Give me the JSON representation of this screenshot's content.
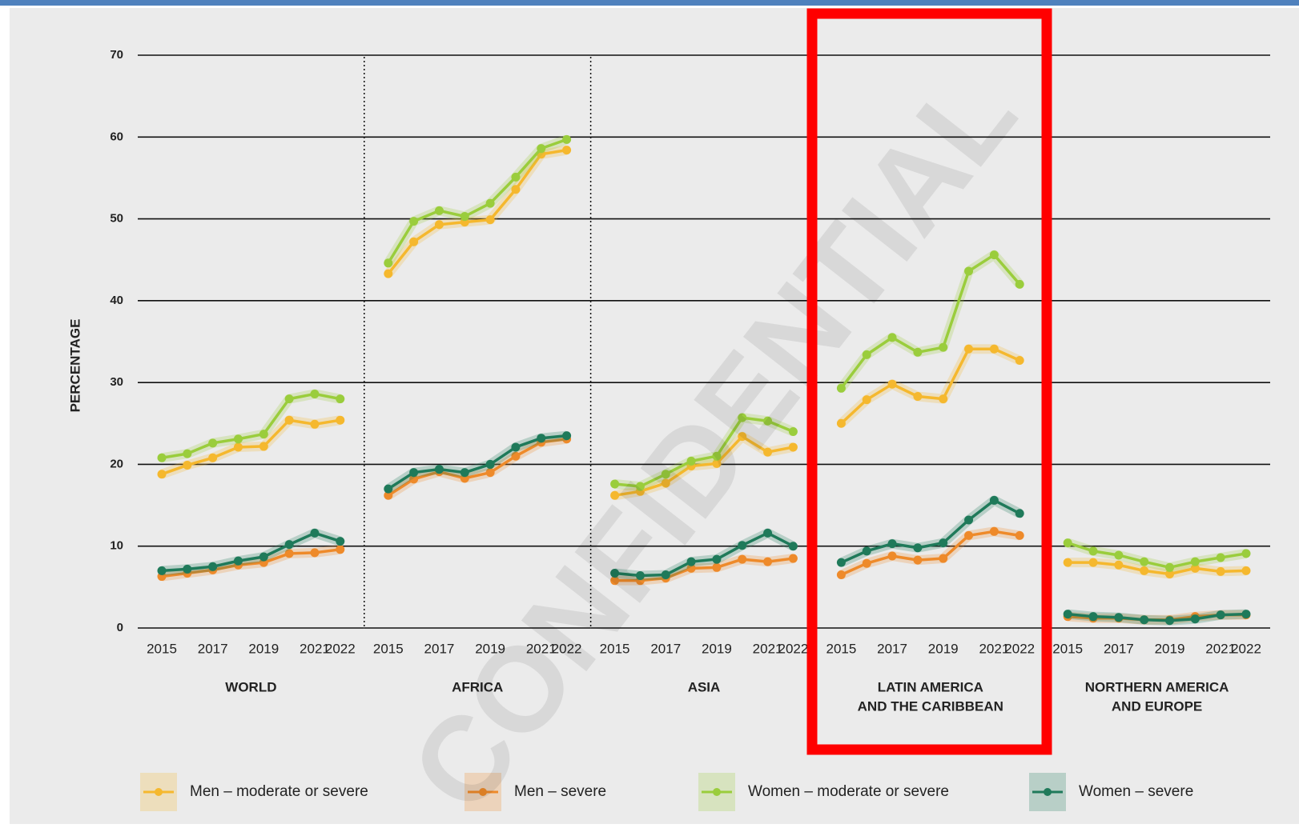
{
  "watermark": "CONFIDENTIAL",
  "chart_data": [
    {
      "type": "line",
      "title": [
        "WORLD"
      ],
      "ylabel": "PERCENTAGE",
      "x": [
        2015,
        2016,
        2017,
        2018,
        2019,
        2020,
        2021,
        2022
      ],
      "xlim": [
        2015,
        2022
      ],
      "xticks": [
        2015,
        2017,
        2019,
        2021,
        2022
      ],
      "ylim": [
        0,
        70
      ],
      "yticks": [
        0,
        10,
        20,
        30,
        40,
        50,
        60,
        70
      ],
      "grid": true,
      "series": [
        {
          "name": "Men – moderate or severe",
          "color": "#f5b82e",
          "values": [
            18.8,
            19.9,
            20.8,
            22.1,
            22.2,
            25.4,
            24.9,
            25.4
          ]
        },
        {
          "name": "Men – severe",
          "color": "#ee8a2a",
          "values": [
            6.3,
            6.7,
            7.1,
            7.7,
            8.0,
            9.1,
            9.2,
            9.6
          ]
        },
        {
          "name": "Women – moderate or severe",
          "color": "#9acd3c",
          "values": [
            20.8,
            21.3,
            22.6,
            23.1,
            23.7,
            28.0,
            28.6,
            28.0
          ]
        },
        {
          "name": "Women – severe",
          "color": "#1f7a5a",
          "values": [
            7.0,
            7.2,
            7.5,
            8.2,
            8.7,
            10.2,
            11.6,
            10.6
          ]
        }
      ]
    },
    {
      "type": "line",
      "title": [
        "AFRICA"
      ],
      "x": [
        2015,
        2016,
        2017,
        2018,
        2019,
        2020,
        2021,
        2022
      ],
      "xlim": [
        2015,
        2022
      ],
      "xticks": [
        2015,
        2017,
        2019,
        2021,
        2022
      ],
      "ylim": [
        0,
        70
      ],
      "yticks": [
        0,
        10,
        20,
        30,
        40,
        50,
        60,
        70
      ],
      "grid": true,
      "series": [
        {
          "name": "Men – moderate or severe",
          "color": "#f5b82e",
          "values": [
            43.3,
            47.2,
            49.3,
            49.6,
            49.9,
            53.6,
            57.9,
            58.4
          ]
        },
        {
          "name": "Men – severe",
          "color": "#ee8a2a",
          "values": [
            16.2,
            18.2,
            19.1,
            18.3,
            19.0,
            21.0,
            22.7,
            23.1
          ]
        },
        {
          "name": "Women – moderate or severe",
          "color": "#9acd3c",
          "values": [
            44.6,
            49.7,
            51.0,
            50.3,
            51.9,
            55.1,
            58.6,
            59.7
          ]
        },
        {
          "name": "Women – severe",
          "color": "#1f7a5a",
          "values": [
            17.0,
            19.0,
            19.4,
            19.0,
            20.0,
            22.1,
            23.2,
            23.5
          ]
        }
      ]
    },
    {
      "type": "line",
      "title": [
        "ASIA"
      ],
      "x": [
        2015,
        2016,
        2017,
        2018,
        2019,
        2020,
        2021,
        2022
      ],
      "xlim": [
        2015,
        2022
      ],
      "xticks": [
        2015,
        2017,
        2019,
        2021,
        2022
      ],
      "ylim": [
        0,
        70
      ],
      "yticks": [
        0,
        10,
        20,
        30,
        40,
        50,
        60,
        70
      ],
      "grid": true,
      "series": [
        {
          "name": "Men – moderate or severe",
          "color": "#f5b82e",
          "values": [
            16.2,
            16.7,
            17.7,
            19.8,
            20.1,
            23.4,
            21.5,
            22.1
          ]
        },
        {
          "name": "Men – severe",
          "color": "#ee8a2a",
          "values": [
            5.8,
            5.8,
            6.1,
            7.3,
            7.4,
            8.4,
            8.1,
            8.5
          ]
        },
        {
          "name": "Women – moderate or severe",
          "color": "#9acd3c",
          "values": [
            17.6,
            17.3,
            18.8,
            20.4,
            21.0,
            25.7,
            25.3,
            24.0
          ]
        },
        {
          "name": "Women – severe",
          "color": "#1f7a5a",
          "values": [
            6.7,
            6.4,
            6.5,
            8.1,
            8.4,
            10.1,
            11.6,
            10.0
          ]
        }
      ]
    },
    {
      "type": "line",
      "title": [
        "LATIN AMERICA",
        "AND THE CARIBBEAN"
      ],
      "x": [
        2015,
        2016,
        2017,
        2018,
        2019,
        2020,
        2021,
        2022
      ],
      "xlim": [
        2015,
        2022
      ],
      "xticks": [
        2015,
        2017,
        2019,
        2021,
        2022
      ],
      "ylim": [
        0,
        70
      ],
      "yticks": [
        0,
        10,
        20,
        30,
        40,
        50,
        60,
        70
      ],
      "grid": true,
      "series": [
        {
          "name": "Men – moderate or severe",
          "color": "#f5b82e",
          "values": [
            25.0,
            27.9,
            29.8,
            28.3,
            28.0,
            34.1,
            34.1,
            32.7
          ]
        },
        {
          "name": "Men – severe",
          "color": "#ee8a2a",
          "values": [
            6.5,
            7.9,
            8.8,
            8.3,
            8.5,
            11.3,
            11.8,
            11.3
          ]
        },
        {
          "name": "Women – moderate or severe",
          "color": "#9acd3c",
          "values": [
            29.3,
            33.4,
            35.5,
            33.7,
            34.3,
            43.6,
            45.6,
            42.0
          ]
        },
        {
          "name": "Women – severe",
          "color": "#1f7a5a",
          "values": [
            8.0,
            9.4,
            10.3,
            9.8,
            10.4,
            13.2,
            15.6,
            14.0
          ]
        }
      ]
    },
    {
      "type": "line",
      "title": [
        "NORTHERN AMERICA",
        "AND EUROPE"
      ],
      "x": [
        2015,
        2016,
        2017,
        2018,
        2019,
        2020,
        2021,
        2022
      ],
      "xlim": [
        2015,
        2022
      ],
      "xticks": [
        2015,
        2017,
        2019,
        2021,
        2022
      ],
      "ylim": [
        0,
        70
      ],
      "yticks": [
        0,
        10,
        20,
        30,
        40,
        50,
        60,
        70
      ],
      "grid": true,
      "series": [
        {
          "name": "Men – moderate or severe",
          "color": "#f5b82e",
          "values": [
            8.0,
            8.0,
            7.7,
            7.0,
            6.6,
            7.3,
            6.9,
            7.0
          ]
        },
        {
          "name": "Men – severe",
          "color": "#ee8a2a",
          "values": [
            1.4,
            1.2,
            1.2,
            1.0,
            1.0,
            1.4,
            1.6,
            1.6
          ]
        },
        {
          "name": "Women – moderate or severe",
          "color": "#9acd3c",
          "values": [
            10.4,
            9.4,
            8.9,
            8.1,
            7.4,
            8.1,
            8.6,
            9.1
          ]
        },
        {
          "name": "Women – severe",
          "color": "#1f7a5a",
          "values": [
            1.7,
            1.4,
            1.3,
            1.0,
            0.9,
            1.1,
            1.6,
            1.7
          ]
        }
      ]
    }
  ]
}
